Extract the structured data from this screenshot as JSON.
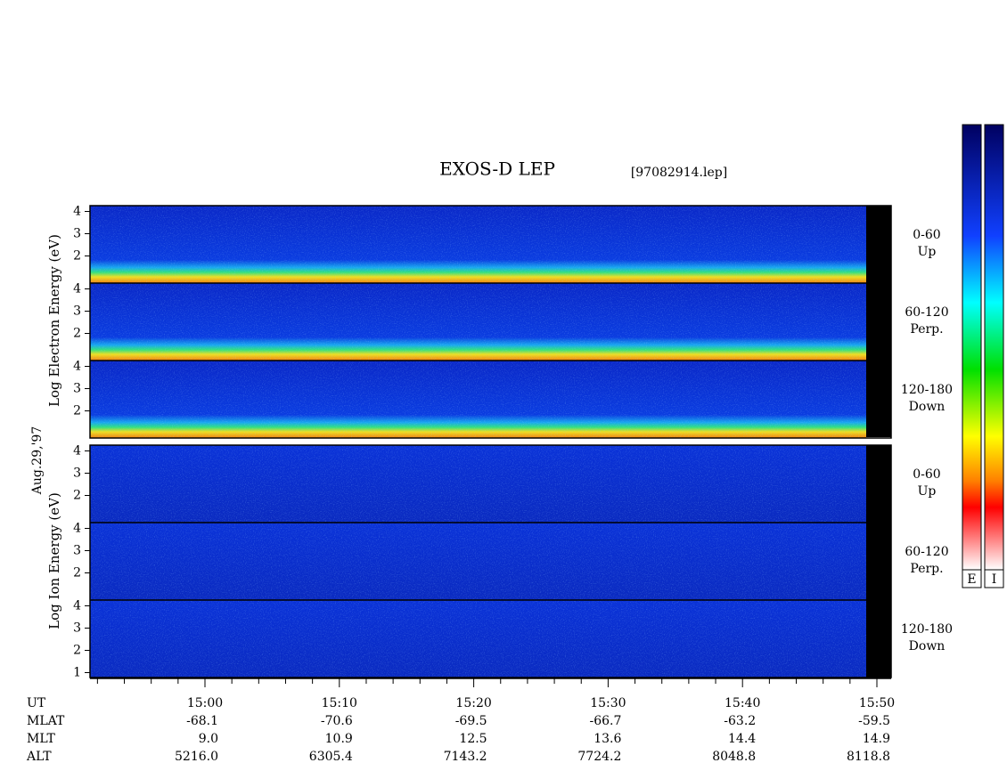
{
  "title": "EXOS-D LEP",
  "file": "[97082914.lep]",
  "date": "Aug.29,'97",
  "electron": {
    "label": "Log Electron Energy (eV)",
    "panels": [
      {
        "angle": "0-60",
        "direction": "Up",
        "yticks": [
          2,
          3,
          4
        ]
      },
      {
        "angle": "60-120",
        "direction": "Perp.",
        "yticks": [
          2,
          3,
          4
        ]
      },
      {
        "angle": "120-180",
        "direction": "Down",
        "yticks": [
          2,
          3,
          4
        ]
      }
    ]
  },
  "ion": {
    "label": "Log Ion Energy (eV)",
    "panels": [
      {
        "angle": "0-60",
        "direction": "Up",
        "yticks": [
          2,
          3,
          4
        ]
      },
      {
        "angle": "60-120",
        "direction": "Perp.",
        "yticks": [
          2,
          3,
          4
        ]
      },
      {
        "angle": "120-180",
        "direction": "Down",
        "yticks": [
          1,
          2,
          3,
          4
        ]
      }
    ]
  },
  "colorbars": [
    "E",
    "I"
  ],
  "time_axis": {
    "rows": [
      {
        "name": "UT",
        "values": [
          "15:00",
          "15:10",
          "15:20",
          "15:30",
          "15:40",
          "15:50"
        ]
      },
      {
        "name": "MLAT",
        "values": [
          "-68.1",
          "-70.6",
          "-69.5",
          "-66.7",
          "-63.2",
          "-59.5"
        ]
      },
      {
        "name": "MLT",
        "values": [
          "9.0",
          "10.9",
          "12.5",
          "13.6",
          "14.4",
          "14.9"
        ]
      },
      {
        "name": "ALT",
        "values": [
          "5216.0",
          "6305.4",
          "7143.2",
          "7724.2",
          "8048.8",
          "8118.8"
        ]
      }
    ]
  }
}
